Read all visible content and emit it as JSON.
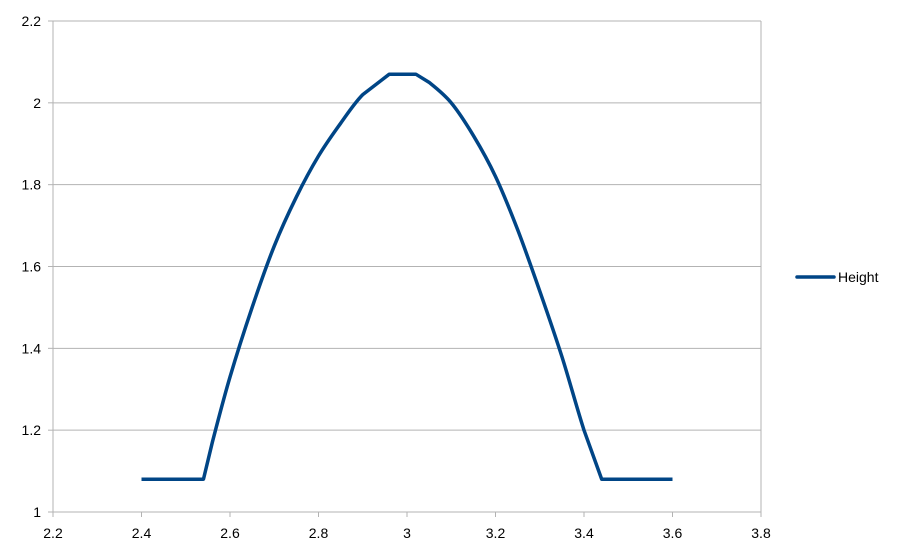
{
  "chart_data": {
    "type": "line",
    "title": "",
    "xlabel": "",
    "ylabel": "",
    "xlim": [
      2.2,
      3.8
    ],
    "ylim": [
      1,
      2.2
    ],
    "x_ticks": [
      "2.2",
      "2.4",
      "2.6",
      "2.8",
      "3",
      "3.2",
      "3.4",
      "3.6",
      "3.8"
    ],
    "y_ticks": [
      "1",
      "1.2",
      "1.4",
      "1.6",
      "1.8",
      "2",
      "2.2"
    ],
    "grid": "horizontal",
    "legend_position": "right",
    "series": [
      {
        "name": "Height",
        "color": "#004586",
        "x": [
          2.4,
          2.54,
          2.56,
          2.6,
          2.65,
          2.7,
          2.75,
          2.8,
          2.85,
          2.9,
          2.96,
          3.02,
          3.05,
          3.1,
          3.15,
          3.2,
          3.25,
          3.3,
          3.35,
          3.4,
          3.44,
          3.6
        ],
        "y": [
          1.08,
          1.08,
          1.17,
          1.33,
          1.5,
          1.65,
          1.77,
          1.87,
          1.95,
          2.02,
          2.07,
          2.07,
          2.05,
          2.0,
          1.92,
          1.82,
          1.69,
          1.54,
          1.38,
          1.2,
          1.08,
          1.08
        ]
      }
    ]
  }
}
